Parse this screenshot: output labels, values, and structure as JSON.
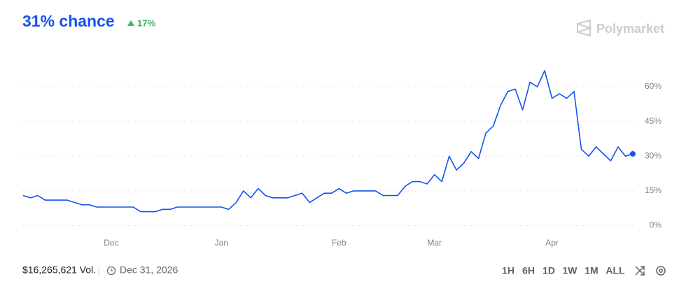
{
  "header": {
    "title": "31% chance",
    "change": "17%",
    "brand": "Polymarket"
  },
  "chart_data": {
    "type": "line",
    "color": "#1652f0",
    "grid": true,
    "categories": [
      null,
      null,
      null,
      null,
      null,
      null,
      null,
      null,
      null,
      null,
      null,
      null,
      "Dec",
      null,
      null,
      null,
      null,
      null,
      null,
      null,
      null,
      null,
      null,
      null,
      null,
      null,
      null,
      "Jan",
      null,
      null,
      null,
      null,
      null,
      null,
      null,
      null,
      null,
      null,
      null,
      null,
      null,
      null,
      null,
      "Feb",
      null,
      null,
      null,
      null,
      null,
      null,
      null,
      null,
      null,
      null,
      null,
      null,
      "Mar",
      null,
      null,
      null,
      null,
      null,
      null,
      null,
      null,
      null,
      null,
      null,
      null,
      null,
      null,
      null,
      "Apr",
      null,
      null,
      null,
      null,
      null,
      null,
      null,
      null,
      null,
      null,
      null
    ],
    "values": [
      13,
      12,
      13,
      11,
      11,
      11,
      11,
      10,
      9,
      9,
      8,
      8,
      8,
      8,
      8,
      8,
      6,
      6,
      6,
      7,
      7,
      8,
      8,
      8,
      8,
      8,
      8,
      8,
      7,
      10,
      15,
      12,
      16,
      13,
      12,
      12,
      12,
      13,
      14,
      10,
      12,
      14,
      14,
      16,
      14,
      15,
      15,
      15,
      15,
      13,
      13,
      13,
      17,
      19,
      19,
      18,
      22,
      19,
      30,
      24,
      27,
      32,
      29,
      40,
      43,
      52,
      58,
      59,
      50,
      62,
      60,
      67,
      55,
      57,
      55,
      58,
      33,
      30,
      34,
      31,
      28,
      34,
      30,
      31
    ],
    "ylim": [
      -5,
      70
    ],
    "yticks": [
      {
        "value": 0,
        "label": "0%"
      },
      {
        "value": 15,
        "label": "15%"
      },
      {
        "value": 30,
        "label": "30%"
      },
      {
        "value": 45,
        "label": "45%"
      },
      {
        "value": 60,
        "label": "60%"
      }
    ]
  },
  "footer": {
    "volume": "$16,265,621 Vol.",
    "end_date": "Dec 31, 2026",
    "ranges": [
      "1H",
      "6H",
      "1D",
      "1W",
      "1M",
      "ALL"
    ]
  }
}
